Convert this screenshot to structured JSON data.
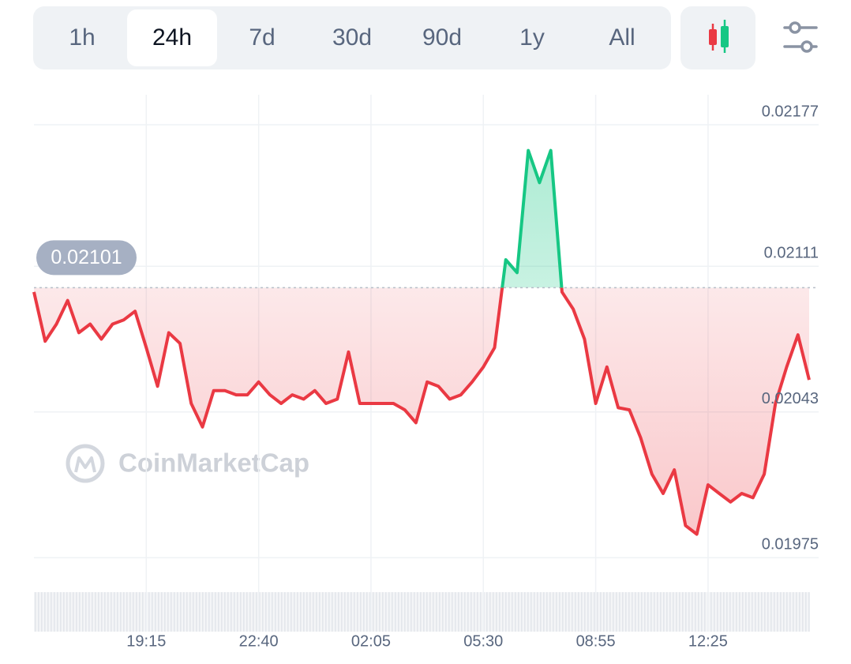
{
  "tabs": [
    "1h",
    "24h",
    "7d",
    "30d",
    "90d",
    "1y",
    "All"
  ],
  "active_tab": 1,
  "watermark": "CoinMarketCap",
  "chart_data": {
    "type": "line",
    "up_color": "#16c784",
    "down_color": "#ea3943",
    "reference_value": 0.02101,
    "categories": [
      null,
      null,
      null,
      null,
      null,
      null,
      null,
      null,
      null,
      null,
      "19:15",
      null,
      null,
      null,
      null,
      null,
      null,
      null,
      null,
      null,
      "22:40",
      null,
      null,
      null,
      null,
      null,
      null,
      null,
      null,
      null,
      "02:05",
      null,
      null,
      null,
      null,
      null,
      null,
      null,
      null,
      null,
      "05:30",
      null,
      null,
      null,
      null,
      null,
      null,
      null,
      null,
      null,
      "08:55",
      null,
      null,
      null,
      null,
      null,
      null,
      null,
      null,
      null,
      "12:25",
      null,
      null,
      null,
      null,
      null,
      null,
      null,
      null,
      null
    ],
    "values": [
      0.02099,
      0.02076,
      0.02084,
      0.02095,
      0.0208,
      0.02084,
      0.02077,
      0.02084,
      0.02086,
      0.0209,
      0.02073,
      0.02055,
      0.0208,
      0.02075,
      0.02047,
      0.02036,
      0.02053,
      0.02053,
      0.02051,
      0.02051,
      0.02057,
      0.02051,
      0.02047,
      0.02051,
      0.02049,
      0.02053,
      0.02047,
      0.02049,
      0.02071,
      0.02047,
      0.02047,
      0.02047,
      0.02047,
      0.02044,
      0.02038,
      0.02057,
      0.02055,
      0.02049,
      0.02051,
      0.02057,
      0.02064,
      0.02073,
      0.02114,
      0.02108,
      0.02165,
      0.0215,
      0.02165,
      0.02099,
      0.02091,
      0.02077,
      0.02047,
      0.02064,
      0.02045,
      0.02044,
      0.02031,
      0.02014,
      0.02005,
      0.02016,
      0.0199,
      0.01986,
      0.02009,
      0.02005,
      0.02001,
      0.02005,
      0.02003,
      0.02014,
      0.02047,
      0.02064,
      0.02079,
      0.02058
    ],
    "ylim": [
      0.0197,
      0.02191
    ],
    "yticks": [
      0.01975,
      0.02043,
      0.02111,
      0.02177
    ],
    "grid": true
  }
}
